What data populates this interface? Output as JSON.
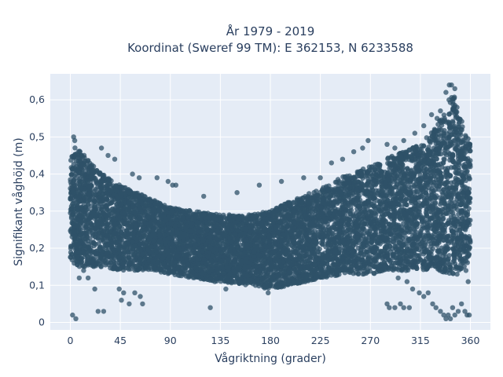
{
  "chart_data": {
    "type": "scatter",
    "title": "År 1979 - 2019",
    "subtitle": "Koordinat (Sweref 99 TM): E 362153, N 6233588",
    "xlabel": "Vågriktning (grader)",
    "ylabel": "Signifikant våghöjd (m)",
    "xlim": [
      -18,
      378
    ],
    "ylim": [
      -0.02,
      0.67
    ],
    "xticks": [
      0,
      45,
      90,
      135,
      180,
      225,
      270,
      315,
      360
    ],
    "xtick_labels": [
      "0",
      "45",
      "90",
      "135",
      "180",
      "225",
      "270",
      "315",
      "360"
    ],
    "yticks": [
      0,
      0.1,
      0.2,
      0.3,
      0.4,
      0.5,
      0.6
    ],
    "ytick_labels": [
      "0",
      "0,1",
      "0,2",
      "0,3",
      "0,4",
      "0,5",
      "0,6"
    ],
    "grid": true,
    "legend": "none",
    "marker_color": "#2f5268",
    "plot_bg": "#e5ecf6",
    "series": [
      {
        "envelope": {
          "x": [
            0,
            5,
            15,
            30,
            45,
            60,
            75,
            90,
            110,
            135,
            160,
            180,
            200,
            225,
            250,
            270,
            290,
            315,
            330,
            340,
            345,
            350,
            355,
            360
          ],
          "y_min": [
            0.17,
            0.15,
            0.15,
            0.15,
            0.14,
            0.14,
            0.14,
            0.13,
            0.12,
            0.11,
            0.1,
            0.09,
            0.1,
            0.12,
            0.13,
            0.13,
            0.14,
            0.14,
            0.14,
            0.13,
            0.13,
            0.14,
            0.15,
            0.17
          ],
          "y_max": [
            0.44,
            0.48,
            0.44,
            0.4,
            0.37,
            0.35,
            0.33,
            0.31,
            0.3,
            0.29,
            0.29,
            0.3,
            0.33,
            0.36,
            0.4,
            0.42,
            0.45,
            0.48,
            0.53,
            0.6,
            0.62,
            0.56,
            0.52,
            0.48
          ]
        },
        "outliers": [
          [
            2,
            0.02
          ],
          [
            5,
            0.01
          ],
          [
            3,
            0.5
          ],
          [
            4,
            0.49
          ],
          [
            8,
            0.12
          ],
          [
            12,
            0.14
          ],
          [
            16,
            0.12
          ],
          [
            22,
            0.09
          ],
          [
            25,
            0.03
          ],
          [
            30,
            0.03
          ],
          [
            28,
            0.47
          ],
          [
            34,
            0.45
          ],
          [
            40,
            0.44
          ],
          [
            44,
            0.09
          ],
          [
            46,
            0.06
          ],
          [
            48,
            0.08
          ],
          [
            53,
            0.05
          ],
          [
            58,
            0.08
          ],
          [
            63,
            0.07
          ],
          [
            65,
            0.05
          ],
          [
            56,
            0.4
          ],
          [
            62,
            0.39
          ],
          [
            78,
            0.39
          ],
          [
            88,
            0.38
          ],
          [
            92,
            0.37
          ],
          [
            95,
            0.37
          ],
          [
            120,
            0.34
          ],
          [
            130,
            0.11
          ],
          [
            126,
            0.04
          ],
          [
            140,
            0.09
          ],
          [
            150,
            0.35
          ],
          [
            170,
            0.37
          ],
          [
            178,
            0.08
          ],
          [
            190,
            0.38
          ],
          [
            210,
            0.39
          ],
          [
            225,
            0.39
          ],
          [
            235,
            0.43
          ],
          [
            245,
            0.44
          ],
          [
            255,
            0.46
          ],
          [
            263,
            0.47
          ],
          [
            268,
            0.49
          ],
          [
            285,
            0.48
          ],
          [
            292,
            0.47
          ],
          [
            300,
            0.49
          ],
          [
            310,
            0.51
          ],
          [
            318,
            0.53
          ],
          [
            325,
            0.56
          ],
          [
            330,
            0.55
          ],
          [
            333,
            0.57
          ],
          [
            338,
            0.62
          ],
          [
            341,
            0.64
          ],
          [
            343,
            0.64
          ],
          [
            346,
            0.63
          ],
          [
            285,
            0.05
          ],
          [
            287,
            0.04
          ],
          [
            292,
            0.04
          ],
          [
            297,
            0.05
          ],
          [
            300,
            0.04
          ],
          [
            305,
            0.04
          ],
          [
            295,
            0.12
          ],
          [
            303,
            0.11
          ],
          [
            308,
            0.09
          ],
          [
            314,
            0.08
          ],
          [
            318,
            0.07
          ],
          [
            322,
            0.08
          ],
          [
            326,
            0.05
          ],
          [
            329,
            0.04
          ],
          [
            333,
            0.03
          ],
          [
            336,
            0.02
          ],
          [
            338,
            0.01
          ],
          [
            340,
            0.02
          ],
          [
            342,
            0.01
          ],
          [
            344,
            0.04
          ],
          [
            346,
            0.02
          ],
          [
            349,
            0.03
          ],
          [
            352,
            0.05
          ],
          [
            355,
            0.03
          ],
          [
            357,
            0.02
          ],
          [
            359,
            0.02
          ],
          [
            348,
            0.13
          ],
          [
            356,
            0.14
          ],
          [
            358,
            0.11
          ]
        ]
      }
    ]
  }
}
